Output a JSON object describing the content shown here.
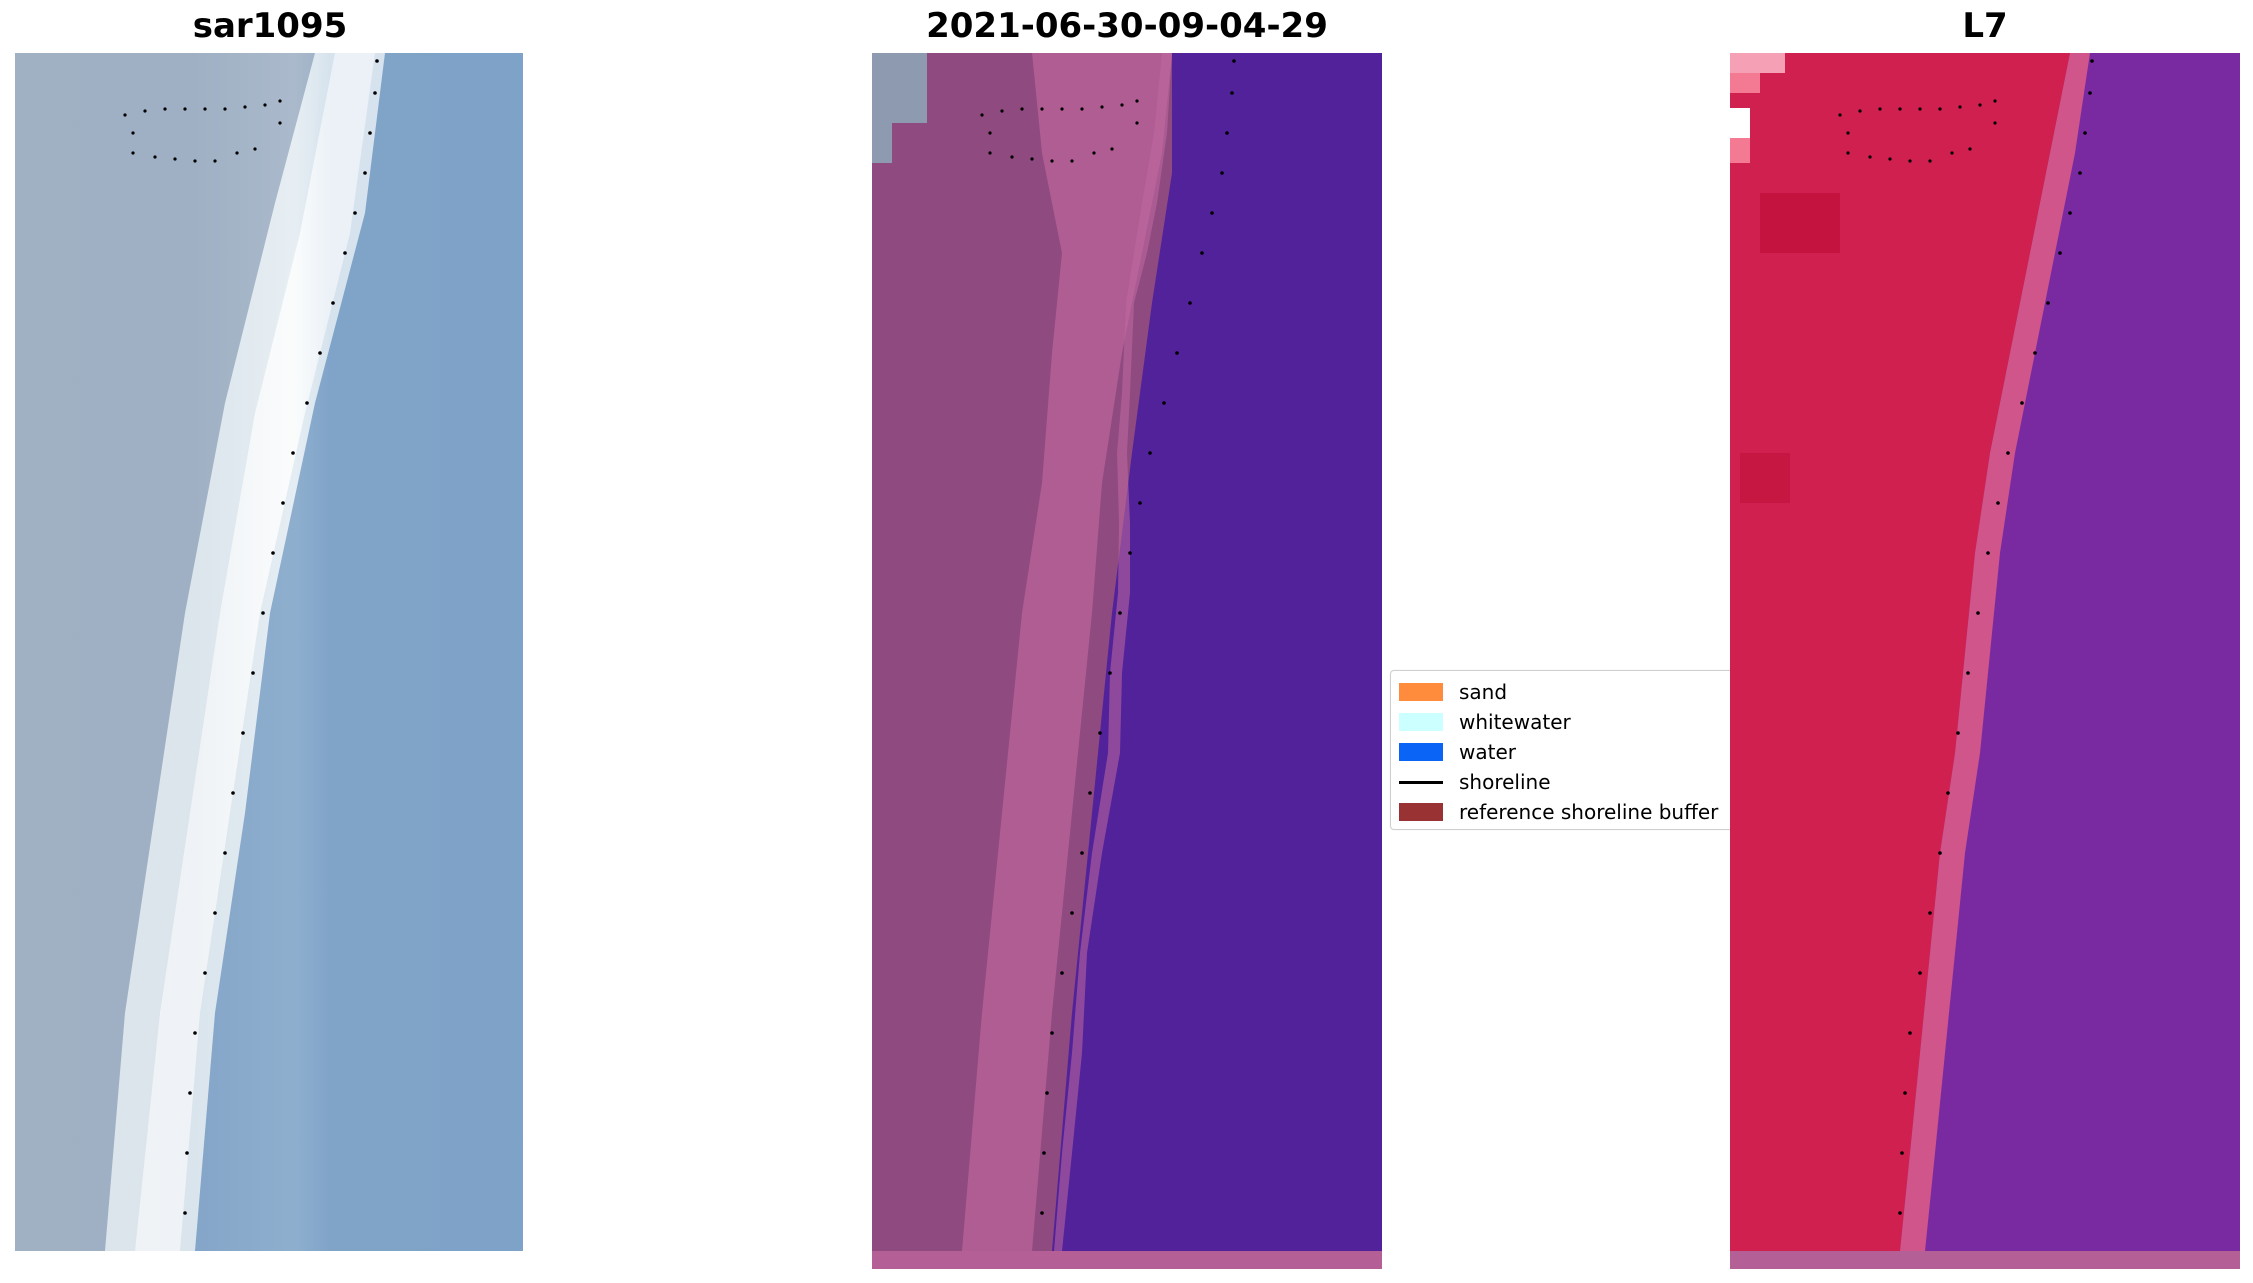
{
  "panels": {
    "rgb": {
      "title": "sar1095"
    },
    "classified": {
      "title": "2021-06-30-09-04-29"
    },
    "ndwi": {
      "title": "L7"
    }
  },
  "legend": {
    "items": [
      {
        "label": "sand",
        "color": "#ff8c3c"
      },
      {
        "label": "whitewater",
        "color": "#ccffff"
      },
      {
        "label": "water",
        "color": "#0a64f5"
      },
      {
        "label": "shoreline",
        "color": "#000000"
      },
      {
        "label": "reference shoreline buffer",
        "color": "#993333"
      }
    ]
  },
  "colors": {
    "rgb_water": "#7fa3c8",
    "rgb_land": "#9fb0c4",
    "rgb_whitewater": "#f2f7fa",
    "class_water": "#52229a",
    "class_land": "#8f4a80",
    "class_buffer": "#b45f95",
    "ndwi_land": "#d0204f",
    "ndwi_water": "#7a2aa0"
  }
}
